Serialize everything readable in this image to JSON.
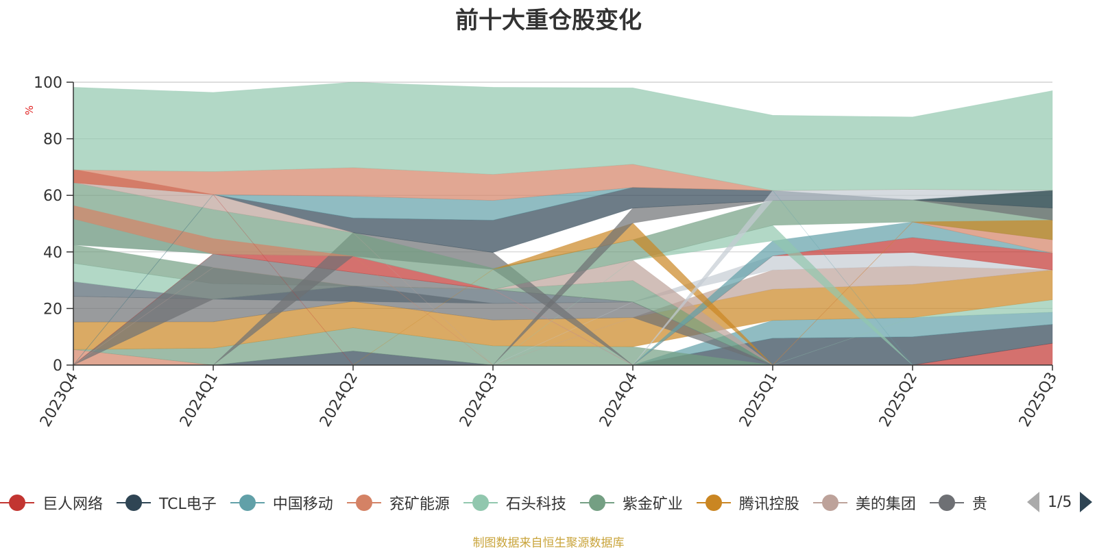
{
  "title": "前十大重仓股变化",
  "source_note": "制图数据来自恒生聚源数据库",
  "legend": {
    "items": [
      {
        "label": "巨人网络",
        "color": "#c23531"
      },
      {
        "label": "TCL电子",
        "color": "#2f4554"
      },
      {
        "label": "中国移动",
        "color": "#61a0a8"
      },
      {
        "label": "兖矿能源",
        "color": "#d48265"
      },
      {
        "label": "石头科技",
        "color": "#91c7ae"
      },
      {
        "label": "紫金矿业",
        "color": "#749f83"
      },
      {
        "label": "腾讯控股",
        "color": "#ca8622"
      },
      {
        "label": "美的集团",
        "color": "#bda29a"
      },
      {
        "label": "贵",
        "color": "#6e7074"
      }
    ],
    "page": "1/5"
  },
  "chart_data": {
    "type": "area",
    "title": "前十大重仓股变化",
    "ylabel": "%",
    "ylim": [
      0,
      100
    ],
    "yticks": [
      0,
      20,
      40,
      60,
      80,
      100
    ],
    "categories": [
      "2023Q4",
      "2024Q1",
      "2024Q2",
      "2024Q3",
      "2024Q4",
      "2025Q1",
      "2025Q2",
      "2025Q3"
    ],
    "grid": true,
    "legend_position": "bottom",
    "bands": [
      {
        "color": "#d48265",
        "lower": [
          0,
          0,
          0,
          0,
          0,
          0,
          0,
          0
        ],
        "upper": [
          5.5,
          0,
          0,
          0,
          0,
          0,
          0,
          0
        ]
      },
      {
        "color": "#c23531",
        "lower": [
          0,
          0,
          0,
          0,
          0,
          0,
          0,
          0
        ],
        "upper": [
          0,
          0,
          0,
          0,
          0,
          0,
          0,
          7.7
        ]
      },
      {
        "color": "#2f4554",
        "lower": [
          0,
          0,
          0,
          0,
          0,
          0,
          0,
          7.7
        ],
        "upper": [
          0,
          0,
          5,
          0,
          0,
          9.5,
          10,
          14.4
        ]
      },
      {
        "color": "#61a0a8",
        "lower": [
          0,
          0,
          0,
          0,
          0,
          9.5,
          10,
          14.4
        ],
        "upper": [
          0,
          0,
          0,
          0,
          0,
          15.8,
          16.8,
          18.7
        ]
      },
      {
        "color": "#91c7ae",
        "lower": [
          0,
          0,
          0,
          0,
          0,
          0,
          16.8,
          18.7
        ],
        "upper": [
          0,
          0,
          0,
          0,
          0,
          0,
          16.8,
          23.1
        ]
      },
      {
        "color": "#749f83",
        "lower": [
          5.5,
          0,
          5,
          0,
          0,
          0,
          0,
          0
        ],
        "upper": [
          5.5,
          6,
          13.2,
          6.8,
          6.5,
          0,
          0,
          0
        ]
      },
      {
        "color": "#ca8622",
        "lower": [
          5.5,
          6,
          13.2,
          6.8,
          6.5,
          15.8,
          16.8,
          23.1
        ],
        "upper": [
          15.2,
          15.3,
          22.5,
          15.9,
          16.8,
          26.8,
          28.5,
          33.6
        ]
      },
      {
        "color": "#bda29a",
        "lower": [
          0,
          0,
          0,
          0,
          16.8,
          26.8,
          28.5,
          33.6
        ],
        "upper": [
          0,
          0,
          0,
          0,
          16.8,
          33.6,
          35,
          33.6
        ]
      },
      {
        "color": "#6e7074",
        "lower": [
          15.2,
          15.3,
          22.5,
          15.9,
          16.8,
          0,
          0,
          0
        ],
        "upper": [
          24.3,
          23.3,
          28,
          21.8,
          22.3,
          0,
          0,
          0
        ]
      },
      {
        "color": "#546570",
        "lower": [
          24.3,
          23.3,
          22.5,
          21.8,
          22.3,
          0,
          0,
          0
        ],
        "upper": [
          29.5,
          23.3,
          28,
          26.7,
          22.3,
          0,
          0,
          0
        ]
      },
      {
        "color": "#91c7ae",
        "lower": [
          29.5,
          23.3,
          28,
          26.7,
          22.3,
          0,
          0,
          0
        ],
        "upper": [
          36,
          28.8,
          28,
          26.7,
          22.3,
          0,
          0,
          0
        ]
      },
      {
        "color": "#c4ccd3",
        "lower": [
          0,
          0,
          0,
          0,
          22.3,
          33.6,
          35,
          33.6
        ],
        "upper": [
          0,
          0,
          0,
          0,
          22.3,
          38.6,
          39.8,
          33.6
        ]
      },
      {
        "color": "#749f83",
        "lower": [
          36,
          28.8,
          28,
          26.7,
          22.3,
          0,
          0,
          0
        ],
        "upper": [
          42.5,
          34.5,
          28,
          26.7,
          29.9,
          0,
          0,
          0
        ]
      },
      {
        "color": "#6e7074",
        "lower": [
          0,
          23.3,
          28,
          26.7,
          22.3,
          0,
          0,
          0
        ],
        "upper": [
          0,
          39.3,
          32.8,
          26.7,
          22.3,
          0,
          0,
          0
        ]
      },
      {
        "color": "#c23531",
        "lower": [
          0,
          39.3,
          32.8,
          26.7,
          0,
          38.6,
          39.8,
          33.6
        ],
        "upper": [
          0,
          39.3,
          38.5,
          26.7,
          0,
          38.6,
          45.1,
          39.6
        ]
      },
      {
        "color": "#bda29a",
        "lower": [
          0,
          34.5,
          28,
          26.7,
          29.9,
          0,
          0,
          0
        ],
        "upper": [
          0,
          34.5,
          28,
          26.7,
          37.1,
          0,
          0,
          0
        ]
      },
      {
        "color": "#61a0a8",
        "lower": [
          0,
          0,
          0,
          0,
          0,
          38.6,
          45.1,
          39.6
        ],
        "upper": [
          0,
          0,
          0,
          0,
          0,
          43.9,
          50.6,
          39.6
        ]
      },
      {
        "color": "#d48265",
        "lower": [
          0,
          0,
          0,
          0,
          0,
          0,
          50.6,
          39.6
        ],
        "upper": [
          0,
          0,
          0,
          0,
          0,
          0,
          50.6,
          44.3
        ]
      },
      {
        "color": "#c4ccd3",
        "lower": [
          42.5,
          39.3,
          38.5,
          26.7,
          0,
          0,
          0,
          0
        ],
        "upper": [
          51.7,
          39.3,
          38.5,
          26.7,
          0,
          0,
          0,
          0
        ]
      },
      {
        "color": "#91c7ae",
        "lower": [
          0,
          0,
          0,
          0,
          37.1,
          43.9,
          0,
          0
        ],
        "upper": [
          0,
          0,
          0,
          0,
          37.1,
          49.4,
          0,
          0
        ]
      },
      {
        "color": "#6e7074",
        "lower": [
          0,
          0,
          38.5,
          33.8,
          0,
          0,
          0,
          0
        ],
        "upper": [
          0,
          0,
          46.8,
          39.8,
          0,
          0,
          0,
          0
        ]
      },
      {
        "color": "#749f83",
        "lower": [
          42.5,
          39.3,
          38.5,
          26.7,
          37.1,
          49.4,
          50.6,
          44.3
        ],
        "upper": [
          64.5,
          55,
          46.8,
          34.2,
          44.3,
          58.2,
          58.4,
          61.8
        ]
      },
      {
        "color": "#ca8622",
        "lower": [
          0,
          0,
          0,
          33.8,
          44.3,
          0,
          50.6,
          44.3
        ],
        "upper": [
          0,
          0,
          0,
          33.8,
          50.2,
          0,
          50.6,
          51.2
        ]
      },
      {
        "color": "#d48265",
        "lower": [
          51.7,
          39.3,
          38.5,
          0,
          0,
          0,
          0,
          0
        ],
        "upper": [
          56.4,
          44.7,
          38.5,
          0,
          0,
          0,
          0,
          0
        ]
      },
      {
        "color": "#6e7074",
        "lower": [
          0,
          0,
          0,
          0,
          50.2,
          58.2,
          58.4,
          51.2
        ],
        "upper": [
          0,
          0,
          0,
          0,
          55.5,
          58.2,
          58.4,
          55.5
        ]
      },
      {
        "color": "#2f4554",
        "lower": [
          0,
          60.3,
          46.8,
          39.8,
          55.5,
          58.2,
          58.4,
          55.5
        ],
        "upper": [
          0,
          60.3,
          52,
          51.2,
          62.8,
          61.7,
          58.4,
          61.8
        ]
      },
      {
        "color": "#bda29a",
        "lower": [
          64.5,
          55,
          46.8,
          0,
          0,
          0,
          0,
          0
        ],
        "upper": [
          64.5,
          60.3,
          46.8,
          0,
          0,
          0,
          0,
          0
        ]
      },
      {
        "color": "#c4ccd3",
        "lower": [
          0,
          0,
          0,
          0,
          0,
          58.2,
          58.4,
          61.8
        ],
        "upper": [
          0,
          0,
          0,
          0,
          0,
          61.7,
          62.1,
          61.8
        ]
      },
      {
        "color": "#61a0a8",
        "lower": [
          0,
          60.3,
          52,
          51.2,
          62.8,
          61.7,
          0,
          0
        ],
        "upper": [
          0,
          60.3,
          59.7,
          58.2,
          62.8,
          61.7,
          0,
          0
        ]
      },
      {
        "color": "#c23531",
        "lower": [
          64.5,
          60.3,
          0,
          0,
          0,
          0,
          0,
          0
        ],
        "upper": [
          69.2,
          60.3,
          0,
          0,
          0,
          0,
          0,
          0
        ]
      },
      {
        "color": "#d48265",
        "lower": [
          64.5,
          60.3,
          59.7,
          58.2,
          62.8,
          61.7,
          62.1,
          61.8
        ],
        "upper": [
          69,
          68.4,
          69.8,
          67.4,
          71,
          61.7,
          62.1,
          61.8
        ]
      },
      {
        "color": "#91c7ae",
        "lower": [
          69,
          68.4,
          69.8,
          67.4,
          71,
          61.7,
          62.1,
          61.8
        ],
        "upper": [
          98.2,
          96.4,
          100,
          98.2,
          98,
          88.3,
          87.7,
          97
        ]
      }
    ]
  }
}
